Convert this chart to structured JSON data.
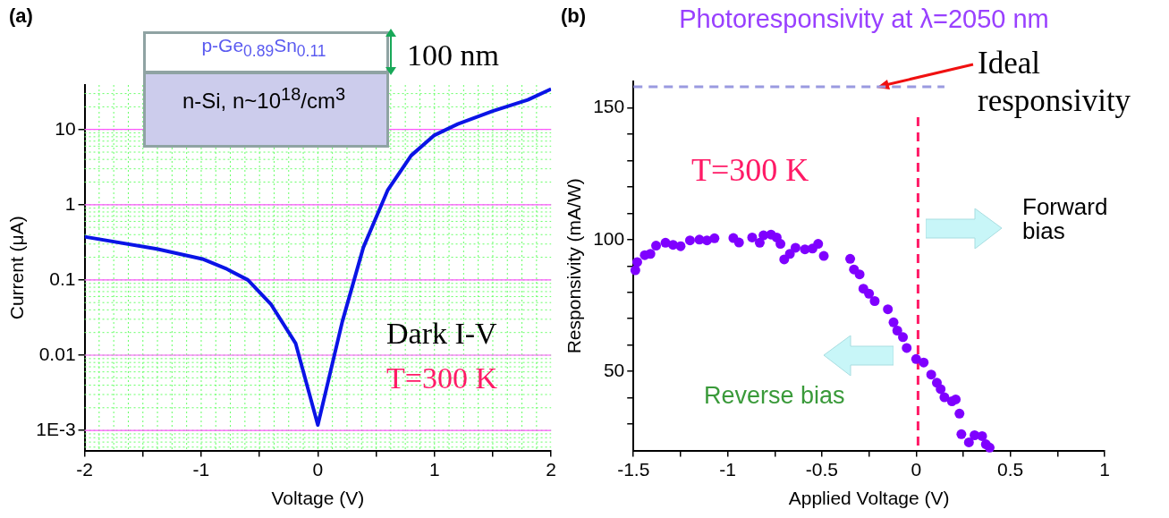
{
  "chart_data": [
    {
      "type": "line",
      "xlabel": "Voltage (V)",
      "ylabel": "Current (μA)",
      "log": "y",
      "grid": true,
      "legend": false,
      "marker": "none",
      "line_style": "solid",
      "xlim": [
        -2,
        2
      ],
      "xticks": [
        -2,
        {
          "value": -1.5,
          "label": null
        },
        -1,
        {
          "value": -0.5,
          "label": null
        },
        0,
        {
          "value": 0.5,
          "label": null
        },
        1,
        {
          "value": 1.5,
          "label": null
        },
        2
      ],
      "ylim": [
        0.00054,
        39
      ],
      "yticks": [
        {
          "value": 0.001,
          "label": "1E-3"
        },
        0.01,
        0.1,
        1,
        10
      ],
      "series": [
        {
          "color": "#0a14e6",
          "x": [
            -2,
            -1.38,
            -0.99,
            -0.79,
            -0.6,
            -0.4,
            -0.19,
            0,
            0.21,
            0.39,
            0.6,
            0.8,
            1.0,
            1.2,
            1.5,
            1.8,
            2.0
          ],
          "values": [
            0.375,
            0.258,
            0.19,
            0.142,
            0.1,
            0.047,
            0.0143,
            0.00118,
            0.028,
            0.27,
            1.57,
            4.5,
            8.4,
            11.8,
            17.6,
            24.7,
            34.5
          ]
        }
      ],
      "annotations": [
        "(a)",
        "p-Ge$_{0.89}$Sn$_{0.11}$",
        "n-Si, n~10$^{18}$/cm$^{3}$",
        "100 nm",
        "Dark I-V",
        "T=300 K"
      ]
    },
    {
      "type": "scatter",
      "title": "Photoresponsivity at λ=2050 nm",
      "xlabel": "Applied Voltage (V)",
      "ylabel": "Responsivity (mA/W)",
      "legend": false,
      "marker": "circle",
      "xlim": [
        -1.5,
        1.0
      ],
      "xticks": [
        -1.5,
        {
          "value": -1.25,
          "label": null
        },
        -1.0,
        {
          "value": -0.75,
          "label": null
        },
        -0.5,
        {
          "value": -0.25,
          "label": null
        },
        0.0,
        {
          "value": 0.25,
          "label": null
        },
        0.5,
        {
          "value": 0.75,
          "label": null
        },
        1.0
      ],
      "ylim": [
        20,
        160
      ],
      "yticks": [
        {
          "value": 30,
          "label": null
        },
        {
          "value": 40,
          "label": null
        },
        50,
        {
          "value": 60,
          "label": null
        },
        {
          "value": 70,
          "label": null
        },
        {
          "value": 80,
          "label": null
        },
        {
          "value": 90,
          "label": null
        },
        100,
        {
          "value": 110,
          "label": null
        },
        {
          "value": 120,
          "label": null
        },
        {
          "value": 130,
          "label": null
        },
        {
          "value": 140,
          "label": null
        },
        150
      ],
      "series": [
        {
          "color": "#7f00ff",
          "x": [
            -1.49,
            -1.48,
            -1.44,
            -1.41,
            -1.38,
            -1.33,
            -1.29,
            -1.25,
            -1.2,
            -1.15,
            -1.11,
            -1.07,
            -0.97,
            -0.94,
            -0.87,
            -0.83,
            -0.81,
            -0.77,
            -0.74,
            -0.72,
            -0.7,
            -0.67,
            -0.64,
            -0.59,
            -0.55,
            -0.52,
            -0.49,
            -0.35,
            -0.33,
            -0.3,
            -0.28,
            -0.25,
            -0.22,
            -0.15,
            -0.12,
            -0.1,
            -0.07,
            -0.05,
            0.0,
            0.04,
            0.08,
            0.11,
            0.13,
            0.15,
            0.19,
            0.21,
            0.23,
            0.24,
            0.28,
            0.31,
            0.35,
            0.37,
            0.39
          ],
          "values": [
            88.4,
            91.5,
            94.1,
            94.6,
            97.7,
            98.8,
            98,
            97.5,
            99.7,
            100,
            99.7,
            100.5,
            100.6,
            98.9,
            100.8,
            98.8,
            101.6,
            101.9,
            100.8,
            98.4,
            92.5,
            94.6,
            96.9,
            96.3,
            96.6,
            98.4,
            93.8,
            92.7,
            88.7,
            86.8,
            81.4,
            79.5,
            76.7,
            73.6,
            68.6,
            65.5,
            63,
            58.9,
            54.7,
            53.4,
            48.8,
            45.7,
            43.3,
            40.2,
            38.7,
            39.4,
            34,
            26.2,
            23.1,
            25.8,
            25.5,
            22.4,
            21.1
          ]
        }
      ],
      "ref_lines": [
        {
          "axis": "y",
          "value": 158,
          "label": "Ideal responsivity",
          "color": "#9a9ae0",
          "line_style": "dashed"
        },
        {
          "axis": "x",
          "value": 0.01,
          "color": "#ff1a66",
          "line_style": "dashed"
        }
      ],
      "annotations": [
        "(b)",
        "T=300 K",
        "Forward bias",
        "Reverse bias"
      ]
    }
  ]
}
